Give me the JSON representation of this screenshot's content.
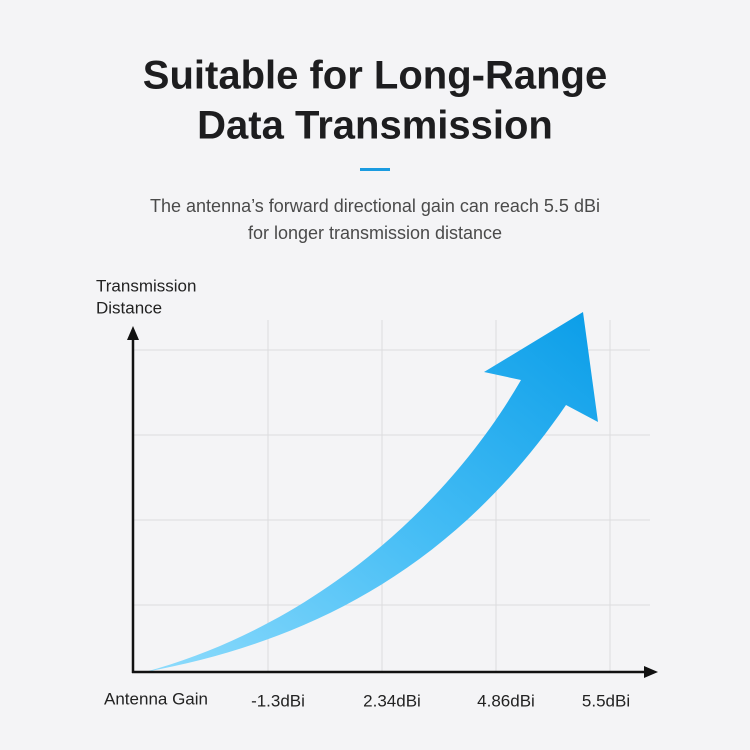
{
  "header": {
    "title": [
      "Suitable for Long-Range",
      "Data Transmission"
    ],
    "subtitle": [
      "The antenna’s forward directional gain can reach 5.5 dBi",
      "for longer transmission distance"
    ]
  },
  "diagram": {
    "y_axis_label": [
      "Transmission",
      "Distance"
    ],
    "x_axis_label": "Antenna Gain",
    "x_labels": [
      "-1.3dBi",
      "2.34dBi",
      "4.86dBi",
      "5.5dBi"
    ]
  }
}
